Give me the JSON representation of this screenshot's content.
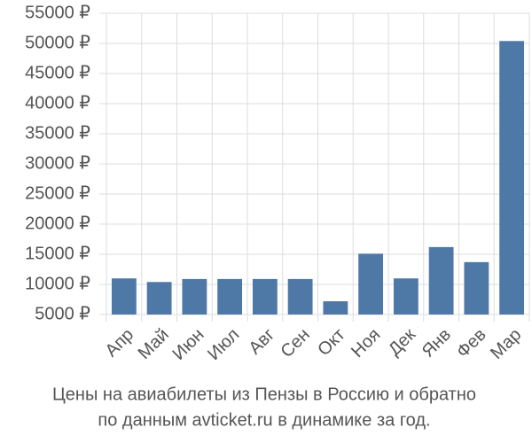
{
  "chart_data": {
    "type": "bar",
    "caption": [
      "Цены на авиабилеты из Пензы в Россию и обратно",
      "по данным avticket.ru в динамике за год."
    ],
    "categories": [
      "Апр",
      "Май",
      "Июн",
      "Июл",
      "Авг",
      "Сен",
      "Окт",
      "Ноя",
      "Дек",
      "Янв",
      "Фев",
      "Мар"
    ],
    "values": [
      11000,
      10400,
      10900,
      10900,
      10900,
      10900,
      7200,
      15100,
      11000,
      16200,
      13700,
      50400
    ],
    "color": "#4e79a7",
    "ylim": [
      5000,
      55000
    ],
    "yticks": [
      {
        "value": 5000,
        "label": "5000 ₽"
      },
      {
        "value": 10000,
        "label": "10000 ₽"
      },
      {
        "value": 15000,
        "label": "15000 ₽"
      },
      {
        "value": 20000,
        "label": "20000 ₽"
      },
      {
        "value": 25000,
        "label": "25000 ₽"
      },
      {
        "value": 30000,
        "label": "30000 ₽"
      },
      {
        "value": 35000,
        "label": "35000 ₽"
      },
      {
        "value": 40000,
        "label": "40000 ₽"
      },
      {
        "value": 45000,
        "label": "45000 ₽"
      },
      {
        "value": 50000,
        "label": "50000 ₽"
      },
      {
        "value": 55000,
        "label": "55000 ₽"
      }
    ],
    "grid": true
  }
}
